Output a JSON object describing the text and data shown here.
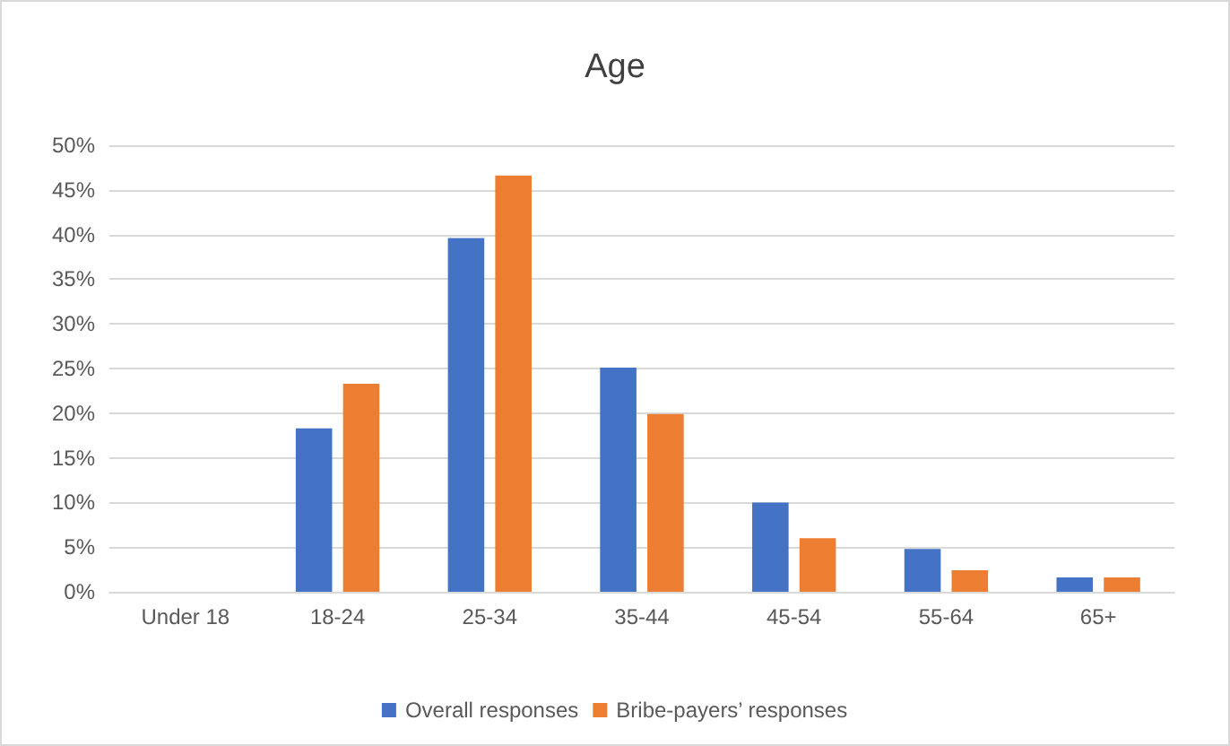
{
  "chart_data": {
    "type": "bar",
    "title": "Age",
    "categories": [
      "Under 18",
      "18-24",
      "25-34",
      "35-44",
      "45-54",
      "55-64",
      "65+"
    ],
    "series": [
      {
        "name": "Overall responses",
        "color": "#4472c4",
        "values": [
          0,
          18.3,
          39.6,
          25.1,
          10,
          4.8,
          1.6
        ]
      },
      {
        "name": "Bribe-payers’ responses",
        "color": "#ed7d31",
        "values": [
          0,
          23.3,
          46.6,
          19.9,
          6,
          2.4,
          1.6
        ]
      }
    ],
    "ylim": [
      0,
      50
    ],
    "yticks": [
      {
        "value": 0,
        "label": "0%"
      },
      {
        "value": 5,
        "label": "5%"
      },
      {
        "value": 10,
        "label": "10%"
      },
      {
        "value": 15,
        "label": "15%"
      },
      {
        "value": 20,
        "label": "20%"
      },
      {
        "value": 25,
        "label": "25%"
      },
      {
        "value": 30,
        "label": "30%"
      },
      {
        "value": 35,
        "label": "35%"
      },
      {
        "value": 40,
        "label": "40%"
      },
      {
        "value": 45,
        "label": "45%"
      },
      {
        "value": 50,
        "label": "50%"
      }
    ],
    "grid": "y",
    "legend": "bottom"
  }
}
